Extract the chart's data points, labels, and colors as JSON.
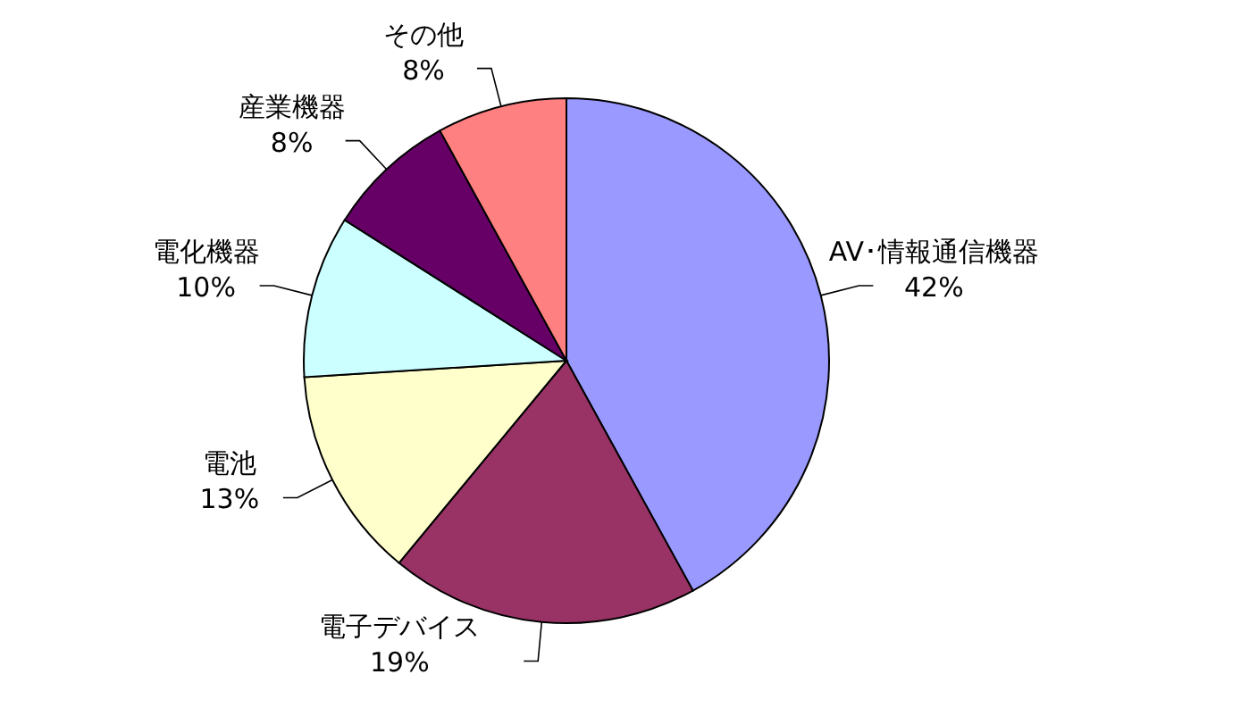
{
  "chart_data": {
    "type": "pie",
    "categories": [
      "AV･情報通信機器",
      "電子デバイス",
      "電池",
      "電化機器",
      "産業機器",
      "その他"
    ],
    "values": [
      42,
      19,
      13,
      10,
      8,
      8
    ],
    "colors": [
      "#9999ff",
      "#993366",
      "#ffffcc",
      "#ccffff",
      "#660066",
      "#ff8080"
    ],
    "value_labels": [
      "42%",
      "19%",
      "13%",
      "10%",
      "8%",
      "8%"
    ]
  }
}
